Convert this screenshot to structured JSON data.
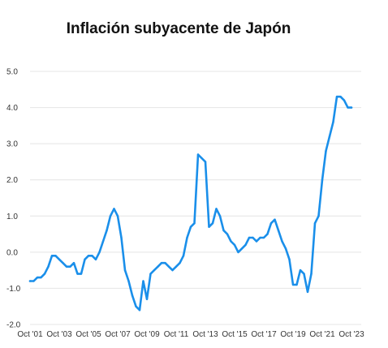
{
  "chart_data": {
    "type": "line",
    "title": "Inflación subyacente de Japón",
    "xlabel": "",
    "ylabel": "",
    "x_ticks": [
      "Oct '01",
      "Oct '03",
      "Oct '05",
      "Oct '07",
      "Oct '09",
      "Oct '11",
      "Oct '13",
      "Oct '15",
      "Oct '17",
      "Oct '19",
      "Oct '21",
      "Oct '23"
    ],
    "y_ticks": [
      "-2.0",
      "-1.0",
      "0.0",
      "1.0",
      "2.0",
      "3.0",
      "4.0",
      "5.0"
    ],
    "xlim": [
      "2001-10",
      "2023-10"
    ],
    "ylim": [
      -2.0,
      5.0
    ],
    "grid": "horizontal",
    "line_color": "#1a8fea",
    "series": [
      {
        "x": [
          "2001-10",
          "2002-01",
          "2002-04",
          "2002-07",
          "2002-10",
          "2003-01",
          "2003-04",
          "2003-07",
          "2003-10",
          "2004-01",
          "2004-04",
          "2004-07",
          "2004-10",
          "2005-01",
          "2005-04",
          "2005-07",
          "2005-10",
          "2006-01",
          "2006-04",
          "2006-07",
          "2006-10",
          "2007-01",
          "2007-04",
          "2007-07",
          "2007-10",
          "2008-01",
          "2008-04",
          "2008-07",
          "2008-10",
          "2009-01",
          "2009-04",
          "2009-07",
          "2009-10",
          "2010-01",
          "2010-04",
          "2010-07",
          "2010-10",
          "2011-01",
          "2011-04",
          "2011-07",
          "2011-10",
          "2012-01",
          "2012-04",
          "2012-07",
          "2012-10",
          "2013-01",
          "2013-04",
          "2013-07",
          "2013-10",
          "2014-01",
          "2014-04",
          "2014-07",
          "2014-10",
          "2015-01",
          "2015-04",
          "2015-07",
          "2015-10",
          "2016-01",
          "2016-04",
          "2016-07",
          "2016-10",
          "2017-01",
          "2017-04",
          "2017-07",
          "2017-10",
          "2018-01",
          "2018-04",
          "2018-07",
          "2018-10",
          "2019-01",
          "2019-04",
          "2019-07",
          "2019-10",
          "2020-01",
          "2020-04",
          "2020-07",
          "2020-10",
          "2021-01",
          "2021-04",
          "2021-07",
          "2021-10",
          "2022-01",
          "2022-04",
          "2022-07",
          "2022-10",
          "2023-01",
          "2023-04",
          "2023-07",
          "2023-10"
        ],
        "values": [
          -0.8,
          -0.8,
          -0.7,
          -0.7,
          -0.6,
          -0.4,
          -0.1,
          -0.1,
          -0.2,
          -0.3,
          -0.4,
          -0.4,
          -0.3,
          -0.6,
          -0.6,
          -0.2,
          -0.1,
          -0.1,
          -0.2,
          0.0,
          0.3,
          0.6,
          1.0,
          1.2,
          1.0,
          0.4,
          -0.5,
          -0.8,
          -1.2,
          -1.5,
          -1.6,
          -0.8,
          -1.3,
          -0.6,
          -0.5,
          -0.4,
          -0.3,
          -0.3,
          -0.4,
          -0.5,
          -0.4,
          -0.3,
          -0.1,
          0.4,
          0.7,
          0.8,
          2.7,
          2.6,
          2.5,
          0.7,
          0.8,
          1.2,
          1.0,
          0.6,
          0.5,
          0.3,
          0.2,
          0.0,
          0.1,
          0.2,
          0.4,
          0.4,
          0.3,
          0.4,
          0.4,
          0.5,
          0.8,
          0.9,
          0.6,
          0.3,
          0.1,
          -0.2,
          -0.9,
          -0.9,
          -0.5,
          -0.6,
          -1.1,
          -0.6,
          0.8,
          1.0,
          2.0,
          2.8,
          3.2,
          3.6,
          4.3,
          4.3,
          4.2,
          4.0,
          4.0
        ]
      }
    ]
  }
}
